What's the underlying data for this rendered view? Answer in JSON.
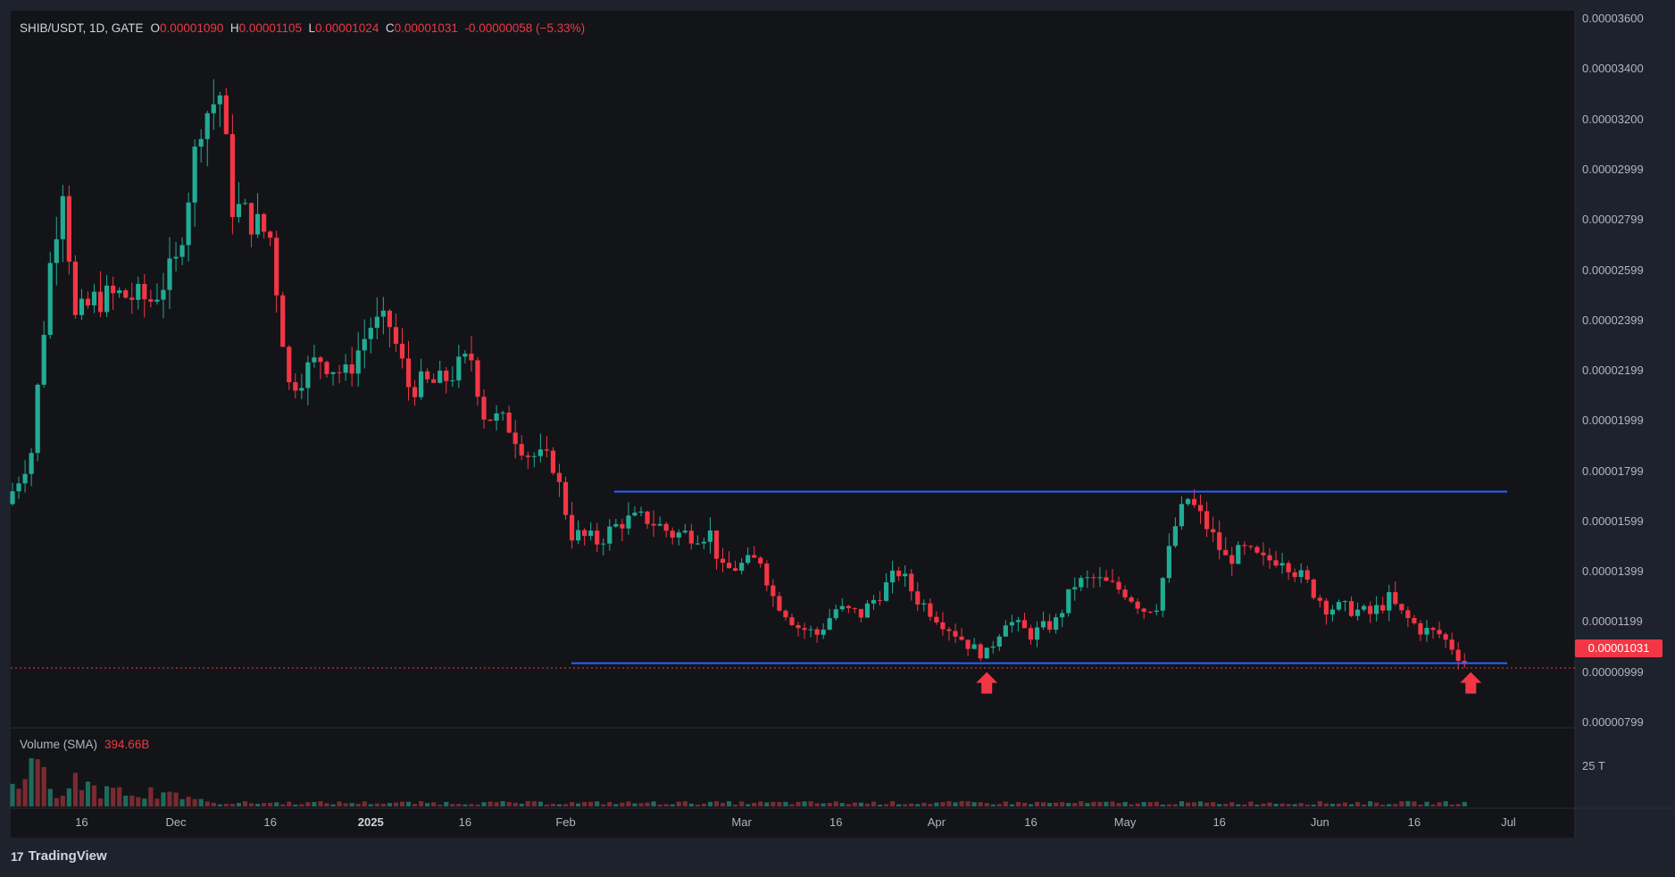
{
  "header": {
    "symbol": "SHIB/USDT, 1D, GATE",
    "o_label": "O",
    "open": "0.00001090",
    "h_label": "H",
    "high": "0.00001105",
    "l_label": "L",
    "low": "0.00001024",
    "c_label": "C",
    "close": "0.00001031",
    "change": "-0.00000058 (−5.33%)"
  },
  "volume_legend": {
    "label": "Volume (SMA)",
    "value": "394.66B"
  },
  "volume_axis_label": "25 T",
  "current_price_tag": "0.00001031",
  "brand": {
    "logo": "17",
    "name": "TradingView"
  },
  "colors": {
    "up": "#22ab94",
    "down": "#f23645",
    "line": "#2962ff",
    "arrow": "#f23645",
    "background": "#131418",
    "frame": "#1e222d"
  },
  "chart_data": {
    "type": "candlestick",
    "symbol": "SHIB/USDT",
    "interval": "1D",
    "exchange": "GATE",
    "y_axis_labels": [
      "0.00003600",
      "0.00003400",
      "0.00003200",
      "0.00002999",
      "0.00002799",
      "0.00002599",
      "0.00002399",
      "0.00002199",
      "0.00001999",
      "0.00001799",
      "0.00001599",
      "0.00001399",
      "0.00001199",
      "0.00000999",
      "0.00000799"
    ],
    "x_axis_labels": [
      "16",
      "Dec",
      "16",
      "2025",
      "16",
      "Feb",
      "Mar",
      "16",
      "Apr",
      "16",
      "May",
      "16",
      "Jun",
      "16",
      "Jul"
    ],
    "ylim": [
      7.99e-06,
      3.6e-05
    ],
    "support": 1.035e-05,
    "resistance": 1.718e-05,
    "last_close": 1.031e-05,
    "close_path": [
      {
        "date": "2024-11-05",
        "close": 1.72e-05
      },
      {
        "date": "2024-11-08",
        "close": 1.88e-05
      },
      {
        "date": "2024-11-11",
        "close": 2.62e-05
      },
      {
        "date": "2024-11-13",
        "close": 2.95e-05
      },
      {
        "date": "2024-11-15",
        "close": 2.4e-05
      },
      {
        "date": "2024-11-18",
        "close": 2.48e-05
      },
      {
        "date": "2024-11-22",
        "close": 2.5e-05
      },
      {
        "date": "2024-11-27",
        "close": 2.48e-05
      },
      {
        "date": "2024-12-01",
        "close": 2.62e-05
      },
      {
        "date": "2024-12-05",
        "close": 3.2e-05
      },
      {
        "date": "2024-12-08",
        "close": 3.3e-05
      },
      {
        "date": "2024-12-10",
        "close": 2.86e-05
      },
      {
        "date": "2024-12-13",
        "close": 2.8e-05
      },
      {
        "date": "2024-12-16",
        "close": 2.73e-05
      },
      {
        "date": "2024-12-19",
        "close": 2.14e-05
      },
      {
        "date": "2024-12-24",
        "close": 2.25e-05
      },
      {
        "date": "2024-12-28",
        "close": 2.18e-05
      },
      {
        "date": "2025-01-01",
        "close": 2.38e-05
      },
      {
        "date": "2025-01-04",
        "close": 2.38e-05
      },
      {
        "date": "2025-01-07",
        "close": 2.14e-05
      },
      {
        "date": "2025-01-12",
        "close": 2.15e-05
      },
      {
        "date": "2025-01-17",
        "close": 2.25e-05
      },
      {
        "date": "2025-01-19",
        "close": 2.03e-05
      },
      {
        "date": "2025-01-23",
        "close": 1.98e-05
      },
      {
        "date": "2025-01-26",
        "close": 1.87e-05
      },
      {
        "date": "2025-01-30",
        "close": 1.83e-05
      },
      {
        "date": "2025-02-02",
        "close": 1.55e-05
      },
      {
        "date": "2025-02-06",
        "close": 1.52e-05
      },
      {
        "date": "2025-02-10",
        "close": 1.6e-05
      },
      {
        "date": "2025-02-14",
        "close": 1.61e-05
      },
      {
        "date": "2025-02-18",
        "close": 1.55e-05
      },
      {
        "date": "2025-02-24",
        "close": 1.55e-05
      },
      {
        "date": "2025-02-26",
        "close": 1.4e-05
      },
      {
        "date": "2025-03-04",
        "close": 1.45e-05
      },
      {
        "date": "2025-03-06",
        "close": 1.3e-05
      },
      {
        "date": "2025-03-10",
        "close": 1.18e-05
      },
      {
        "date": "2025-03-13",
        "close": 1.15e-05
      },
      {
        "date": "2025-03-16",
        "close": 1.25e-05
      },
      {
        "date": "2025-03-20",
        "close": 1.23e-05
      },
      {
        "date": "2025-03-26",
        "close": 1.4e-05
      },
      {
        "date": "2025-03-29",
        "close": 1.29e-05
      },
      {
        "date": "2025-04-02",
        "close": 1.2e-05
      },
      {
        "date": "2025-04-07",
        "close": 1.09e-05
      },
      {
        "date": "2025-04-09",
        "close": 1.07e-05
      },
      {
        "date": "2025-04-12",
        "close": 1.21e-05
      },
      {
        "date": "2025-04-16",
        "close": 1.15e-05
      },
      {
        "date": "2025-04-20",
        "close": 1.2e-05
      },
      {
        "date": "2025-04-23",
        "close": 1.35e-05
      },
      {
        "date": "2025-04-26",
        "close": 1.37e-05
      },
      {
        "date": "2025-05-01",
        "close": 1.32e-05
      },
      {
        "date": "2025-05-04",
        "close": 1.25e-05
      },
      {
        "date": "2025-05-06",
        "close": 1.27e-05
      },
      {
        "date": "2025-05-09",
        "close": 1.58e-05
      },
      {
        "date": "2025-05-11",
        "close": 1.69e-05
      },
      {
        "date": "2025-05-14",
        "close": 1.58e-05
      },
      {
        "date": "2025-05-17",
        "close": 1.45e-05
      },
      {
        "date": "2025-05-20",
        "close": 1.48e-05
      },
      {
        "date": "2025-05-23",
        "close": 1.44e-05
      },
      {
        "date": "2025-05-26",
        "close": 1.46e-05
      },
      {
        "date": "2025-05-30",
        "close": 1.35e-05
      },
      {
        "date": "2025-06-02",
        "close": 1.26e-05
      },
      {
        "date": "2025-06-06",
        "close": 1.25e-05
      },
      {
        "date": "2025-06-09",
        "close": 1.23e-05
      },
      {
        "date": "2025-06-12",
        "close": 1.29e-05
      },
      {
        "date": "2025-06-14",
        "close": 1.23e-05
      },
      {
        "date": "2025-06-17",
        "close": 1.17e-05
      },
      {
        "date": "2025-06-20",
        "close": 1.15e-05
      },
      {
        "date": "2025-06-22",
        "close": 1.1e-05
      },
      {
        "date": "2025-06-24",
        "close": 1.031e-05
      }
    ],
    "annotations": [
      {
        "type": "arrow-up",
        "date": "2025-04-09"
      },
      {
        "type": "arrow-up",
        "date": "2025-06-25"
      }
    ]
  }
}
